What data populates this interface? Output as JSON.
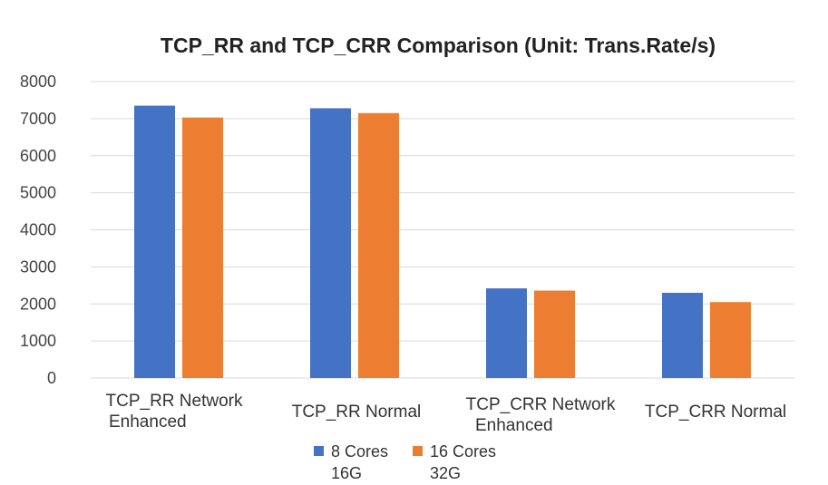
{
  "chart_data": {
    "type": "bar",
    "title": "TCP_RR and TCP_CRR Comparison (Unit: Trans.Rate/s)",
    "xlabel": "",
    "ylabel": "",
    "ylim": [
      0,
      8000
    ],
    "yticks": [
      0,
      1000,
      2000,
      3000,
      4000,
      5000,
      6000,
      7000,
      8000
    ],
    "grid": true,
    "legend_position": "bottom-center",
    "categories": [
      [
        "TCP_RR Network",
        "Enhanced"
      ],
      [
        "TCP_RR Normal"
      ],
      [
        "TCP_CRR Network",
        "Enhanced"
      ],
      [
        "TCP_CRR Normal"
      ]
    ],
    "series": [
      {
        "name": [
          "8 Cores",
          "16G"
        ],
        "color": "#4472C4",
        "values": [
          7350,
          7280,
          2420,
          2300
        ]
      },
      {
        "name": [
          "16 Cores",
          "32G"
        ],
        "color": "#ED7D31",
        "values": [
          7030,
          7150,
          2360,
          2050
        ]
      }
    ]
  }
}
